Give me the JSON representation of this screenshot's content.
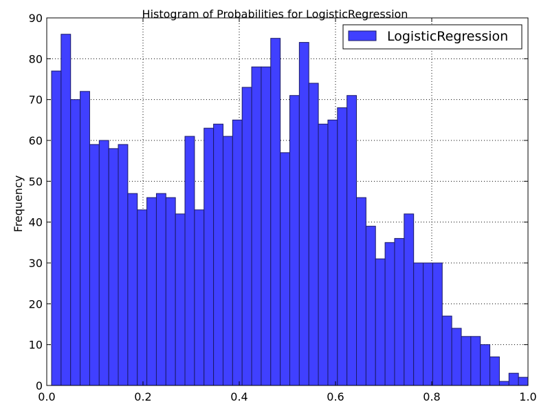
{
  "chart_data": {
    "type": "bar",
    "title": "Histogram of Probabilities for LogisticRegression",
    "xlabel": "",
    "ylabel": "Frequency",
    "xlim": [
      0.0,
      1.0
    ],
    "ylim": [
      0,
      90
    ],
    "x_ticks": [
      "0.0",
      "0.2",
      "0.4",
      "0.6",
      "0.8",
      "1.0"
    ],
    "y_ticks": [
      "0",
      "10",
      "20",
      "30",
      "40",
      "50",
      "60",
      "70",
      "80",
      "90"
    ],
    "grid": true,
    "legend_position": "top-right",
    "bin_range": [
      0.01,
      1.0
    ],
    "series": [
      {
        "name": "LogisticRegression",
        "color": "#4040ff",
        "edge_color": "#1a1a66",
        "values": [
          77,
          86,
          70,
          72,
          59,
          60,
          58,
          59,
          47,
          43,
          46,
          47,
          46,
          42,
          61,
          43,
          63,
          64,
          61,
          65,
          73,
          78,
          78,
          85,
          57,
          71,
          84,
          74,
          64,
          65,
          68,
          71,
          46,
          39,
          31,
          35,
          36,
          42,
          30,
          30,
          30,
          17,
          14,
          12,
          12,
          10,
          7,
          1,
          3,
          2
        ]
      }
    ]
  }
}
